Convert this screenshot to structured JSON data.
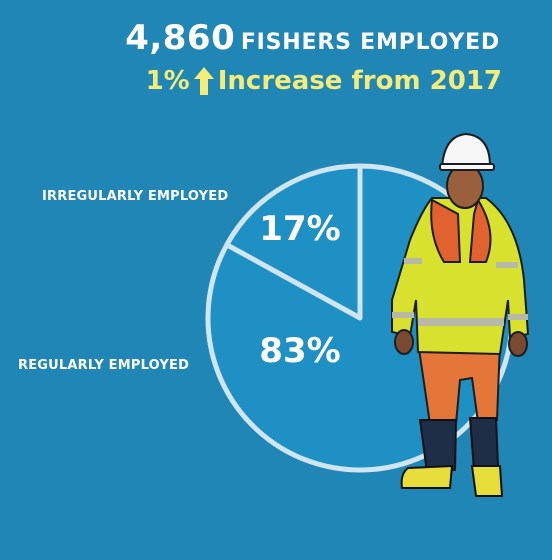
{
  "headline": {
    "count": "4,860",
    "label": "FISHERS EMPLOYED"
  },
  "change": {
    "percent": "1%",
    "text": "Increase from 2017",
    "direction": "up"
  },
  "chart_data": {
    "type": "pie",
    "categories": [
      "IRREGULARLY EMPLOYED",
      "REGULARLY EMPLOYED"
    ],
    "values": [
      17,
      83
    ],
    "data_labels": [
      "17%",
      "83%"
    ],
    "colors": {
      "slice": "#1e90c4",
      "outline": "#cfe5f2"
    }
  },
  "colors": {
    "background": "#1f86b6",
    "text": "#ffffff",
    "accent": "#f3eb7a"
  }
}
